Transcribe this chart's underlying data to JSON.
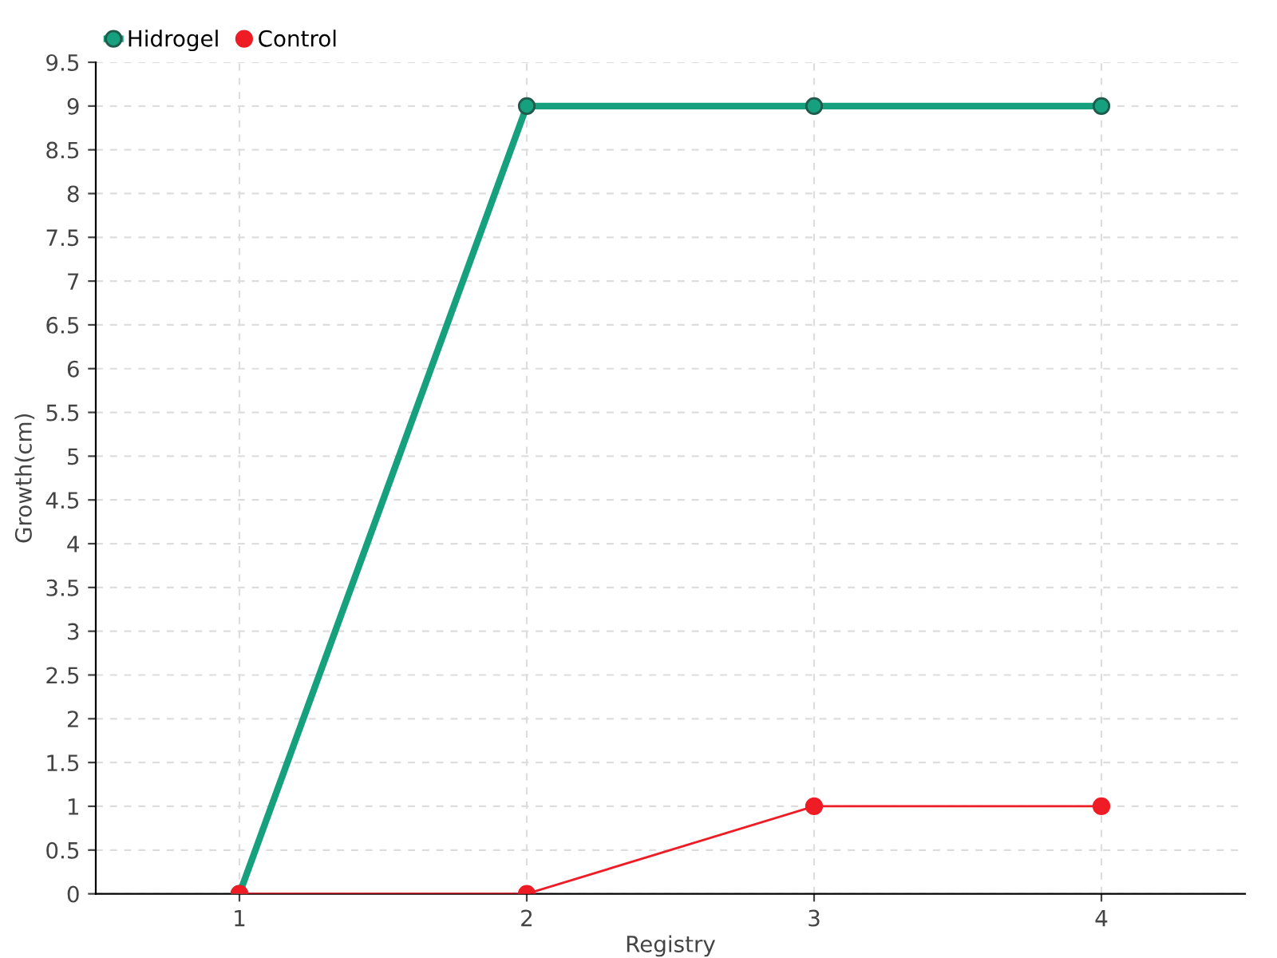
{
  "chart_data": {
    "type": "line",
    "xlabel": "Registry",
    "ylabel": "Growth(cm)",
    "x": [
      1,
      2,
      3,
      4
    ],
    "series": [
      {
        "name": "Hidrogel",
        "color": "#17a07e",
        "values": [
          0,
          9,
          9,
          9
        ]
      },
      {
        "name": "Control",
        "color": "#ee1c25",
        "values": [
          0,
          0,
          1,
          1
        ]
      }
    ],
    "xlim": [
      0.5,
      4.5
    ],
    "xticks": [
      1,
      2,
      3,
      4
    ],
    "ylim": [
      0,
      9.5
    ],
    "yticks": [
      0,
      0.5,
      1,
      1.5,
      2,
      2.5,
      3,
      3.5,
      4,
      4.5,
      5,
      5.5,
      6,
      6.5,
      7,
      7.5,
      8,
      8.5,
      9,
      9.5
    ],
    "grid": true,
    "legend": "top left",
    "marker": "circle",
    "line_style": "solid"
  }
}
